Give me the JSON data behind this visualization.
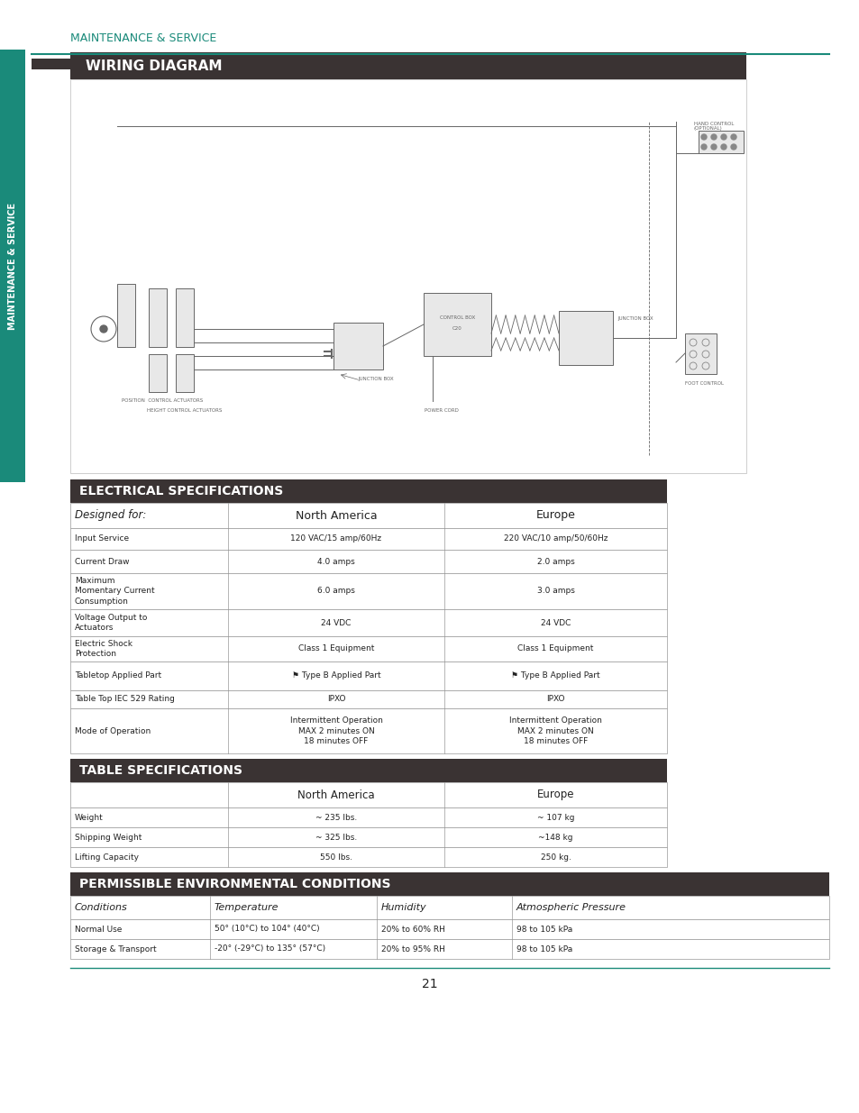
{
  "page_bg": "#ffffff",
  "teal_color": "#1a8a7a",
  "dark_header_color": "#3a3333",
  "sidebar_teal": "#1a8a7a",
  "header_text_color": "#ffffff",
  "maintenance_label": "MAINTENANCE & SERVICE",
  "section_title_wiring": "WIRING DIAGRAM",
  "section_title_electrical": "ELECTRICAL SPECIFICATIONS",
  "section_title_table": "TABLE SPECIFICATIONS",
  "section_title_env": "PERMISSIBLE ENVIRONMENTAL CONDITIONS",
  "page_number": "21",
  "elec_header_row": [
    "Designed for:",
    "North America",
    "Europe"
  ],
  "elec_rows": [
    [
      "Input Service",
      "120 VAC/15 amp/60Hz",
      "220 VAC/10 amp/50/60Hz"
    ],
    [
      "Current Draw",
      "4.0 amps",
      "2.0 amps"
    ],
    [
      "Maximum\nMomentary Current\nConsumption",
      "6.0 amps",
      "3.0 amps"
    ],
    [
      "Voltage Output to\nActuators",
      "24 VDC",
      "24 VDC"
    ],
    [
      "Electric Shock\nProtection",
      "Class 1 Equipment",
      "Class 1 Equipment"
    ],
    [
      "Tabletop Applied Part",
      "⚑ Type B Applied Part",
      "⚑ Type B Applied Part"
    ],
    [
      "Table Top IEC 529 Rating",
      "IPXO",
      "IPXO"
    ],
    [
      "Mode of Operation",
      "Intermittent Operation\nMAX 2 minutes ON\n18 minutes OFF",
      "Intermittent Operation\nMAX 2 minutes ON\n18 minutes OFF"
    ]
  ],
  "table_header_row": [
    "",
    "North America",
    "Europe"
  ],
  "table_rows": [
    [
      "Weight",
      "~ 235 lbs.",
      "~ 107 kg"
    ],
    [
      "Shipping Weight",
      "~ 325 lbs.",
      "~148 kg"
    ],
    [
      "Lifting Capacity",
      "550 lbs.",
      "250 kg."
    ]
  ],
  "env_header_row": [
    "Conditions",
    "Temperature",
    "Humidity",
    "Atmospheric Pressure"
  ],
  "env_rows": [
    [
      "Normal Use",
      "50° (10°C) to 104° (40°C)",
      "20% to 60% RH",
      "98 to 105 kPa"
    ],
    [
      "Storage & Transport",
      "-20° (-29°C) to 135° (57°C)",
      "20% to 95% RH",
      "98 to 105 kPa"
    ]
  ]
}
